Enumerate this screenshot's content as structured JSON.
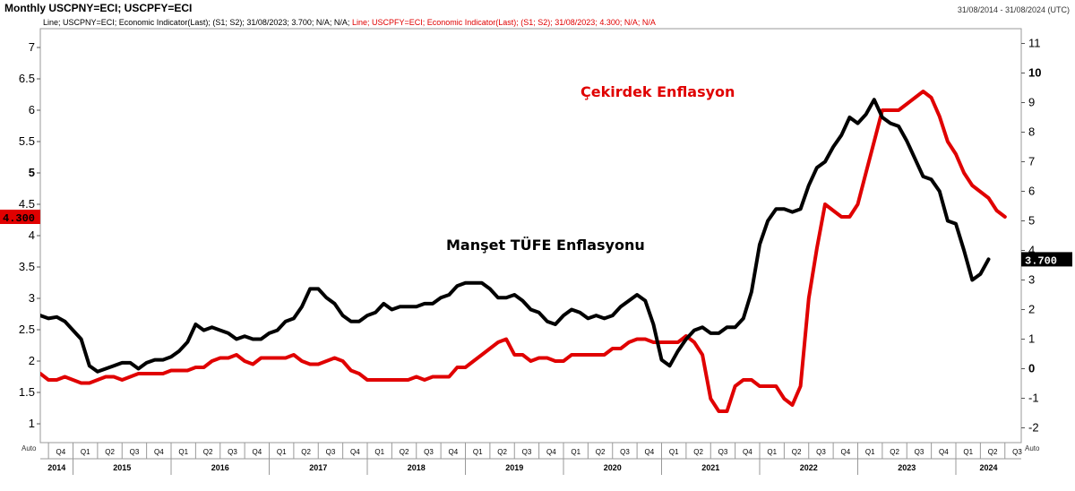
{
  "header": {
    "title": "Monthly USCPNY=ECI; USCPFY=ECI",
    "date_range": "31/08/2014 - 31/08/2024 (UTC)",
    "legend_black": "Line; USCPNY=ECI; Economic Indicator(Last); (S1; S2); 31/08/2023; 3.700; N/A; N/A;",
    "legend_red": "Line; USCPFY=ECI; Economic Indicator(Last); (S1; S2); 31/08/2023; 4.300; N/A; N/A"
  },
  "chart_data": {
    "type": "line",
    "x_start": "2014-09",
    "x_end": "2024-09",
    "left_axis": {
      "ticks": [
        "1",
        "1.5",
        "2",
        "2.5",
        "3",
        "3.5",
        "4",
        "4.5",
        "5",
        "5.5",
        "6",
        "6.5",
        "7"
      ],
      "min": 0.7,
      "max": 7.3
    },
    "right_axis": {
      "ticks": [
        "-2",
        "-1",
        "0",
        "1",
        "2",
        "3",
        "4",
        "5",
        "6",
        "7",
        "8",
        "9",
        "10",
        "11"
      ],
      "min": -2.5,
      "max": 11.5
    },
    "x_quarters": [
      "Q4",
      "Q1",
      "Q2",
      "Q3",
      "Q4",
      "Q1",
      "Q2",
      "Q3",
      "Q4",
      "Q1",
      "Q2",
      "Q3",
      "Q4",
      "Q1",
      "Q2",
      "Q3",
      "Q4",
      "Q1",
      "Q2",
      "Q3",
      "Q4",
      "Q1",
      "Q2",
      "Q3",
      "Q4",
      "Q1",
      "Q2",
      "Q3",
      "Q4",
      "Q1",
      "Q2",
      "Q3",
      "Q4",
      "Q1",
      "Q2",
      "Q3",
      "Q4",
      "Q1",
      "Q2",
      "Q3"
    ],
    "x_years": [
      "2014",
      "2015",
      "2016",
      "2017",
      "2018",
      "2019",
      "2020",
      "2021",
      "2022",
      "2023",
      "2024"
    ],
    "auto_label": "Auto",
    "series": [
      {
        "color": "#e00000",
        "axis": "left",
        "start": "2014-09",
        "values": [
          1.8,
          1.7,
          1.7,
          1.75,
          1.7,
          1.65,
          1.65,
          1.7,
          1.75,
          1.75,
          1.7,
          1.75,
          1.8,
          1.8,
          1.8,
          1.8,
          1.85,
          1.85,
          1.85,
          1.9,
          1.9,
          2.0,
          2.05,
          2.05,
          2.1,
          2.0,
          1.95,
          2.05,
          2.05,
          2.05,
          2.05,
          2.1,
          2.0,
          1.95,
          1.95,
          2.0,
          2.05,
          2.0,
          1.85,
          1.8,
          1.7,
          1.7,
          1.7,
          1.7,
          1.7,
          1.7,
          1.75,
          1.7,
          1.75,
          1.75,
          1.75,
          1.9,
          1.9,
          2.0,
          2.1,
          2.2,
          2.3,
          2.35,
          2.1,
          2.1,
          2.0,
          2.05,
          2.05,
          2.0,
          2.0,
          2.1,
          2.1,
          2.1,
          2.1,
          2.1,
          2.2,
          2.2,
          2.3,
          2.35,
          2.35,
          2.3,
          2.3,
          2.3,
          2.3,
          2.4,
          2.3,
          2.1,
          1.4,
          1.2,
          1.2,
          1.6,
          1.7,
          1.7,
          1.6,
          1.6,
          1.6,
          1.4,
          1.3,
          1.6,
          3.0,
          3.8,
          4.5,
          4.4,
          4.3,
          4.3,
          4.5,
          5.0,
          5.5,
          6.0,
          6.0,
          6.0,
          6.1,
          6.2,
          6.3,
          6.2,
          5.9,
          5.5,
          5.3,
          5.0,
          4.8,
          4.7,
          4.6,
          4.4,
          4.3
        ],
        "label": "Çekirdek Enflasyon"
      },
      {
        "color": "#000000",
        "axis": "right",
        "start": "2014-09",
        "values": [
          1.8,
          1.7,
          1.75,
          1.6,
          1.3,
          1.0,
          0.1,
          -0.1,
          0.0,
          0.1,
          0.2,
          0.2,
          0.0,
          0.2,
          0.3,
          0.3,
          0.4,
          0.6,
          0.9,
          1.5,
          1.3,
          1.4,
          1.3,
          1.2,
          1.0,
          1.1,
          1.0,
          1.0,
          1.2,
          1.3,
          1.6,
          1.7,
          2.1,
          2.7,
          2.7,
          2.4,
          2.2,
          1.8,
          1.6,
          1.6,
          1.8,
          1.9,
          2.2,
          2.0,
          2.1,
          2.1,
          2.1,
          2.2,
          2.2,
          2.4,
          2.5,
          2.8,
          2.9,
          2.9,
          2.9,
          2.7,
          2.4,
          2.4,
          2.5,
          2.3,
          2.0,
          1.9,
          1.6,
          1.5,
          1.8,
          2.0,
          1.9,
          1.7,
          1.8,
          1.7,
          1.8,
          2.1,
          2.3,
          2.5,
          2.3,
          1.5,
          0.3,
          0.1,
          0.6,
          1.0,
          1.3,
          1.4,
          1.2,
          1.2,
          1.4,
          1.4,
          1.7,
          2.6,
          4.2,
          5.0,
          5.4,
          5.4,
          5.3,
          5.4,
          6.2,
          6.8,
          7.0,
          7.5,
          7.9,
          8.5,
          8.3,
          8.6,
          9.1,
          8.5,
          8.3,
          8.2,
          7.7,
          7.1,
          6.5,
          6.4,
          6.0,
          5.0,
          4.9,
          4.0,
          3.0,
          3.2,
          3.7
        ],
        "label": "Manşet TÜFE Enflasyonu"
      }
    ],
    "last_values": {
      "red": "4.300",
      "black": "3.700"
    }
  }
}
